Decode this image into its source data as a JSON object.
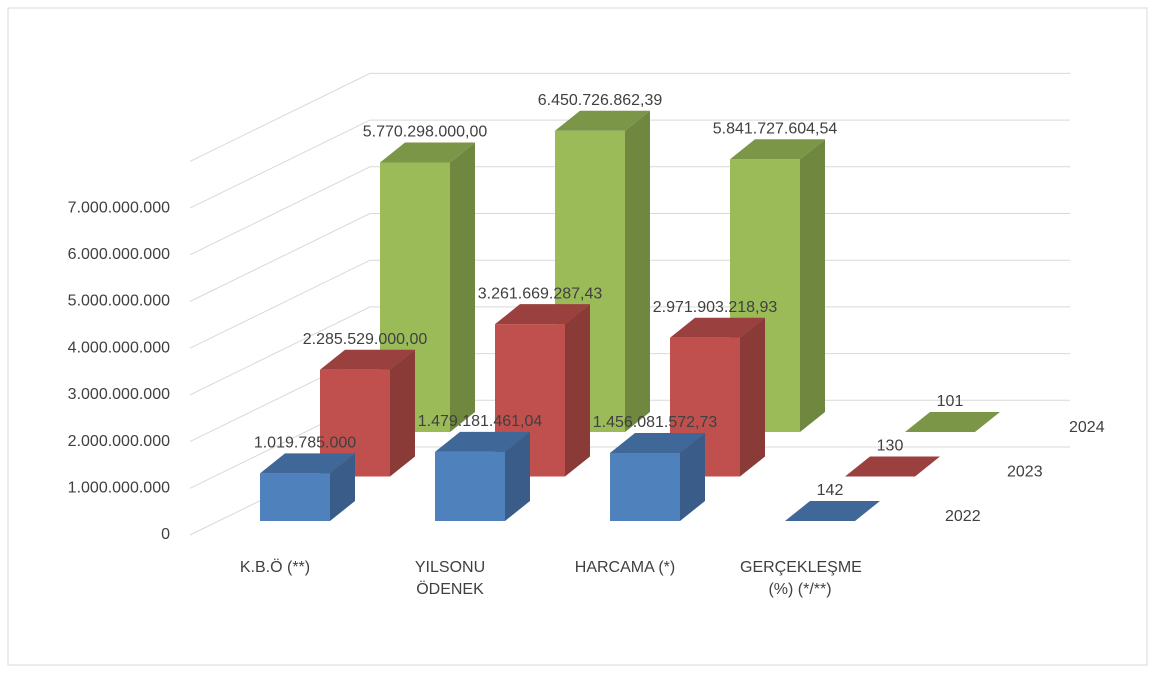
{
  "chart_data": {
    "type": "bar3d",
    "categories": [
      "K.B.Ö (**)",
      "YILSONU ÖDENEK",
      "HARCAMA (*)",
      "GERÇEKLEŞME (%) (*/**)"
    ],
    "series": [
      {
        "name": "2022",
        "color": "#4f81bd",
        "values": [
          1019785000,
          1479181461.04,
          1456081572.73,
          142
        ],
        "value_labels": [
          "1.019.785.000",
          "1.479.181.461,04",
          "1.456.081.572,73",
          "142"
        ]
      },
      {
        "name": "2023",
        "color": "#c0504d",
        "values": [
          2285529000,
          3261669287.43,
          2971903218.93,
          130
        ],
        "value_labels": [
          "2.285.529.000,00",
          "3.261.669.287,43",
          "2.971.903.218,93",
          "130"
        ]
      },
      {
        "name": "2024",
        "color": "#9bbb59",
        "values": [
          5770298000,
          6450726862.39,
          5841727604.54,
          101
        ],
        "value_labels": [
          "5.770.298.000,00",
          "6.450.726.862,39",
          "5.841.727.604,54",
          "101"
        ]
      }
    ],
    "ylim": [
      0,
      8000000000
    ],
    "yticks": [
      0,
      {
        "value": 1000000000,
        "label": "1.000.000.000"
      },
      {
        "value": 2000000000,
        "label": "2.000.000.000"
      },
      {
        "value": 3000000000,
        "label": "3.000.000.000"
      },
      {
        "value": 4000000000,
        "label": "4.000.000.000"
      },
      {
        "value": 5000000000,
        "label": "5.000.000.000"
      },
      {
        "value": 6000000000,
        "label": "6.000.000.000"
      },
      {
        "value": 7000000000,
        "label": "7.000.000.000"
      }
    ],
    "grid": true
  }
}
